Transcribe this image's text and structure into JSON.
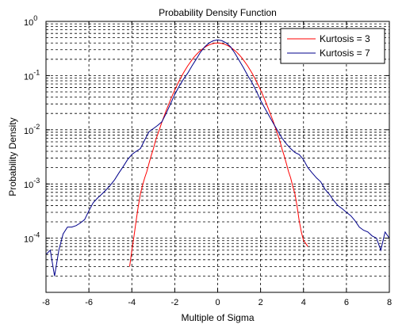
{
  "chart_data": {
    "type": "line",
    "title": "Probability Density Function",
    "xlabel": "Multiple of Sigma",
    "ylabel": "Probability Density",
    "xlim": [
      -8,
      8
    ],
    "ylim": [
      1e-05,
      1
    ],
    "y_scale": "log",
    "grid": true,
    "legend_position": "top-right",
    "x_ticks": [
      "-8",
      "-6",
      "-4",
      "-2",
      "0",
      "2",
      "4",
      "6",
      "8"
    ],
    "y_ticks": [
      {
        "base": "10",
        "exp": "0"
      },
      {
        "base": "10",
        "exp": "-1"
      },
      {
        "base": "10",
        "exp": "-2"
      },
      {
        "base": "10",
        "exp": "-3"
      },
      {
        "base": "10",
        "exp": "-4"
      }
    ],
    "series": [
      {
        "name": "Kurtosis = 3",
        "color": "#ff0000",
        "x": [
          -4.1,
          -4.0,
          -3.9,
          -3.8,
          -3.7,
          -3.6,
          -3.5,
          -3.4,
          -3.3,
          -3.2,
          -3.1,
          -3.0,
          -2.9,
          -2.8,
          -2.7,
          -2.6,
          -2.5,
          -2.4,
          -2.3,
          -2.2,
          -2.1,
          -2.0,
          -1.9,
          -1.8,
          -1.7,
          -1.6,
          -1.5,
          -1.4,
          -1.3,
          -1.2,
          -1.1,
          -1.0,
          -0.9,
          -0.8,
          -0.7,
          -0.6,
          -0.5,
          -0.4,
          -0.3,
          -0.2,
          -0.1,
          0.0,
          0.1,
          0.2,
          0.3,
          0.4,
          0.5,
          0.6,
          0.7,
          0.8,
          0.9,
          1.0,
          1.1,
          1.2,
          1.3,
          1.4,
          1.5,
          1.6,
          1.7,
          1.8,
          1.9,
          2.0,
          2.1,
          2.2,
          2.3,
          2.4,
          2.5,
          2.6,
          2.7,
          2.8,
          2.9,
          3.0,
          3.1,
          3.2,
          3.3,
          3.4,
          3.5,
          3.6,
          3.7,
          3.8,
          3.9,
          4.0,
          4.1,
          4.2
        ],
        "y": [
          3e-05,
          6e-05,
          0.00011,
          0.00021,
          0.00039,
          0.00066,
          0.00095,
          0.0013,
          0.0017,
          0.0024,
          0.0033,
          0.0044,
          0.0062,
          0.0081,
          0.0105,
          0.0138,
          0.0176,
          0.0225,
          0.0284,
          0.0356,
          0.0442,
          0.054,
          0.0656,
          0.079,
          0.094,
          0.111,
          0.129,
          0.15,
          0.171,
          0.194,
          0.218,
          0.242,
          0.266,
          0.29,
          0.312,
          0.333,
          0.352,
          0.368,
          0.381,
          0.391,
          0.397,
          0.399,
          0.397,
          0.391,
          0.381,
          0.368,
          0.352,
          0.333,
          0.312,
          0.29,
          0.266,
          0.242,
          0.218,
          0.194,
          0.171,
          0.15,
          0.129,
          0.111,
          0.094,
          0.079,
          0.0656,
          0.054,
          0.0442,
          0.0356,
          0.0284,
          0.0225,
          0.0176,
          0.0138,
          0.0105,
          0.0081,
          0.0062,
          0.0044,
          0.0033,
          0.0024,
          0.0017,
          0.0013,
          0.0009,
          0.00066,
          0.00039,
          0.00021,
          0.00013,
          9e-05,
          8e-05,
          7e-05
        ]
      },
      {
        "name": "Kurtosis = 7",
        "color": "#00008b",
        "x": [
          -8.0,
          -7.8,
          -7.6,
          -7.4,
          -7.2,
          -7.0,
          -6.8,
          -6.6,
          -6.4,
          -6.2,
          -6.0,
          -5.8,
          -5.6,
          -5.4,
          -5.2,
          -5.0,
          -4.8,
          -4.6,
          -4.4,
          -4.2,
          -4.0,
          -3.8,
          -3.6,
          -3.4,
          -3.2,
          -3.0,
          -2.8,
          -2.6,
          -2.4,
          -2.2,
          -2.0,
          -1.8,
          -1.6,
          -1.4,
          -1.2,
          -1.0,
          -0.8,
          -0.6,
          -0.4,
          -0.2,
          0.0,
          0.2,
          0.4,
          0.6,
          0.8,
          1.0,
          1.2,
          1.4,
          1.6,
          1.8,
          2.0,
          2.2,
          2.4,
          2.6,
          2.8,
          3.0,
          3.2,
          3.4,
          3.6,
          3.8,
          4.0,
          4.2,
          4.4,
          4.6,
          4.8,
          5.0,
          5.2,
          5.4,
          5.6,
          5.8,
          6.0,
          6.2,
          6.4,
          6.6,
          6.8,
          7.0,
          7.2,
          7.4,
          7.6,
          7.8,
          8.0
        ],
        "y": [
          5e-05,
          6e-05,
          2e-05,
          6e-05,
          0.00012,
          0.00016,
          0.00016,
          0.00017,
          0.00019,
          0.00022,
          0.00032,
          0.00045,
          0.00055,
          0.00065,
          0.00078,
          0.00095,
          0.0012,
          0.0016,
          0.0021,
          0.0028,
          0.0035,
          0.004,
          0.0045,
          0.0065,
          0.0092,
          0.0105,
          0.012,
          0.014,
          0.02,
          0.03,
          0.045,
          0.063,
          0.085,
          0.11,
          0.15,
          0.2,
          0.27,
          0.34,
          0.4,
          0.44,
          0.455,
          0.44,
          0.4,
          0.34,
          0.26,
          0.19,
          0.14,
          0.1,
          0.074,
          0.052,
          0.035,
          0.025,
          0.018,
          0.013,
          0.0095,
          0.007,
          0.0055,
          0.0045,
          0.0038,
          0.0035,
          0.0028,
          0.002,
          0.0016,
          0.0013,
          0.0011,
          0.0008,
          0.00065,
          0.0005,
          0.0004,
          0.00035,
          0.0003,
          0.00026,
          0.00021,
          0.00016,
          0.00014,
          0.00013,
          0.00011,
          0.0001,
          6e-05,
          0.00013,
          0.0001
        ]
      }
    ]
  }
}
